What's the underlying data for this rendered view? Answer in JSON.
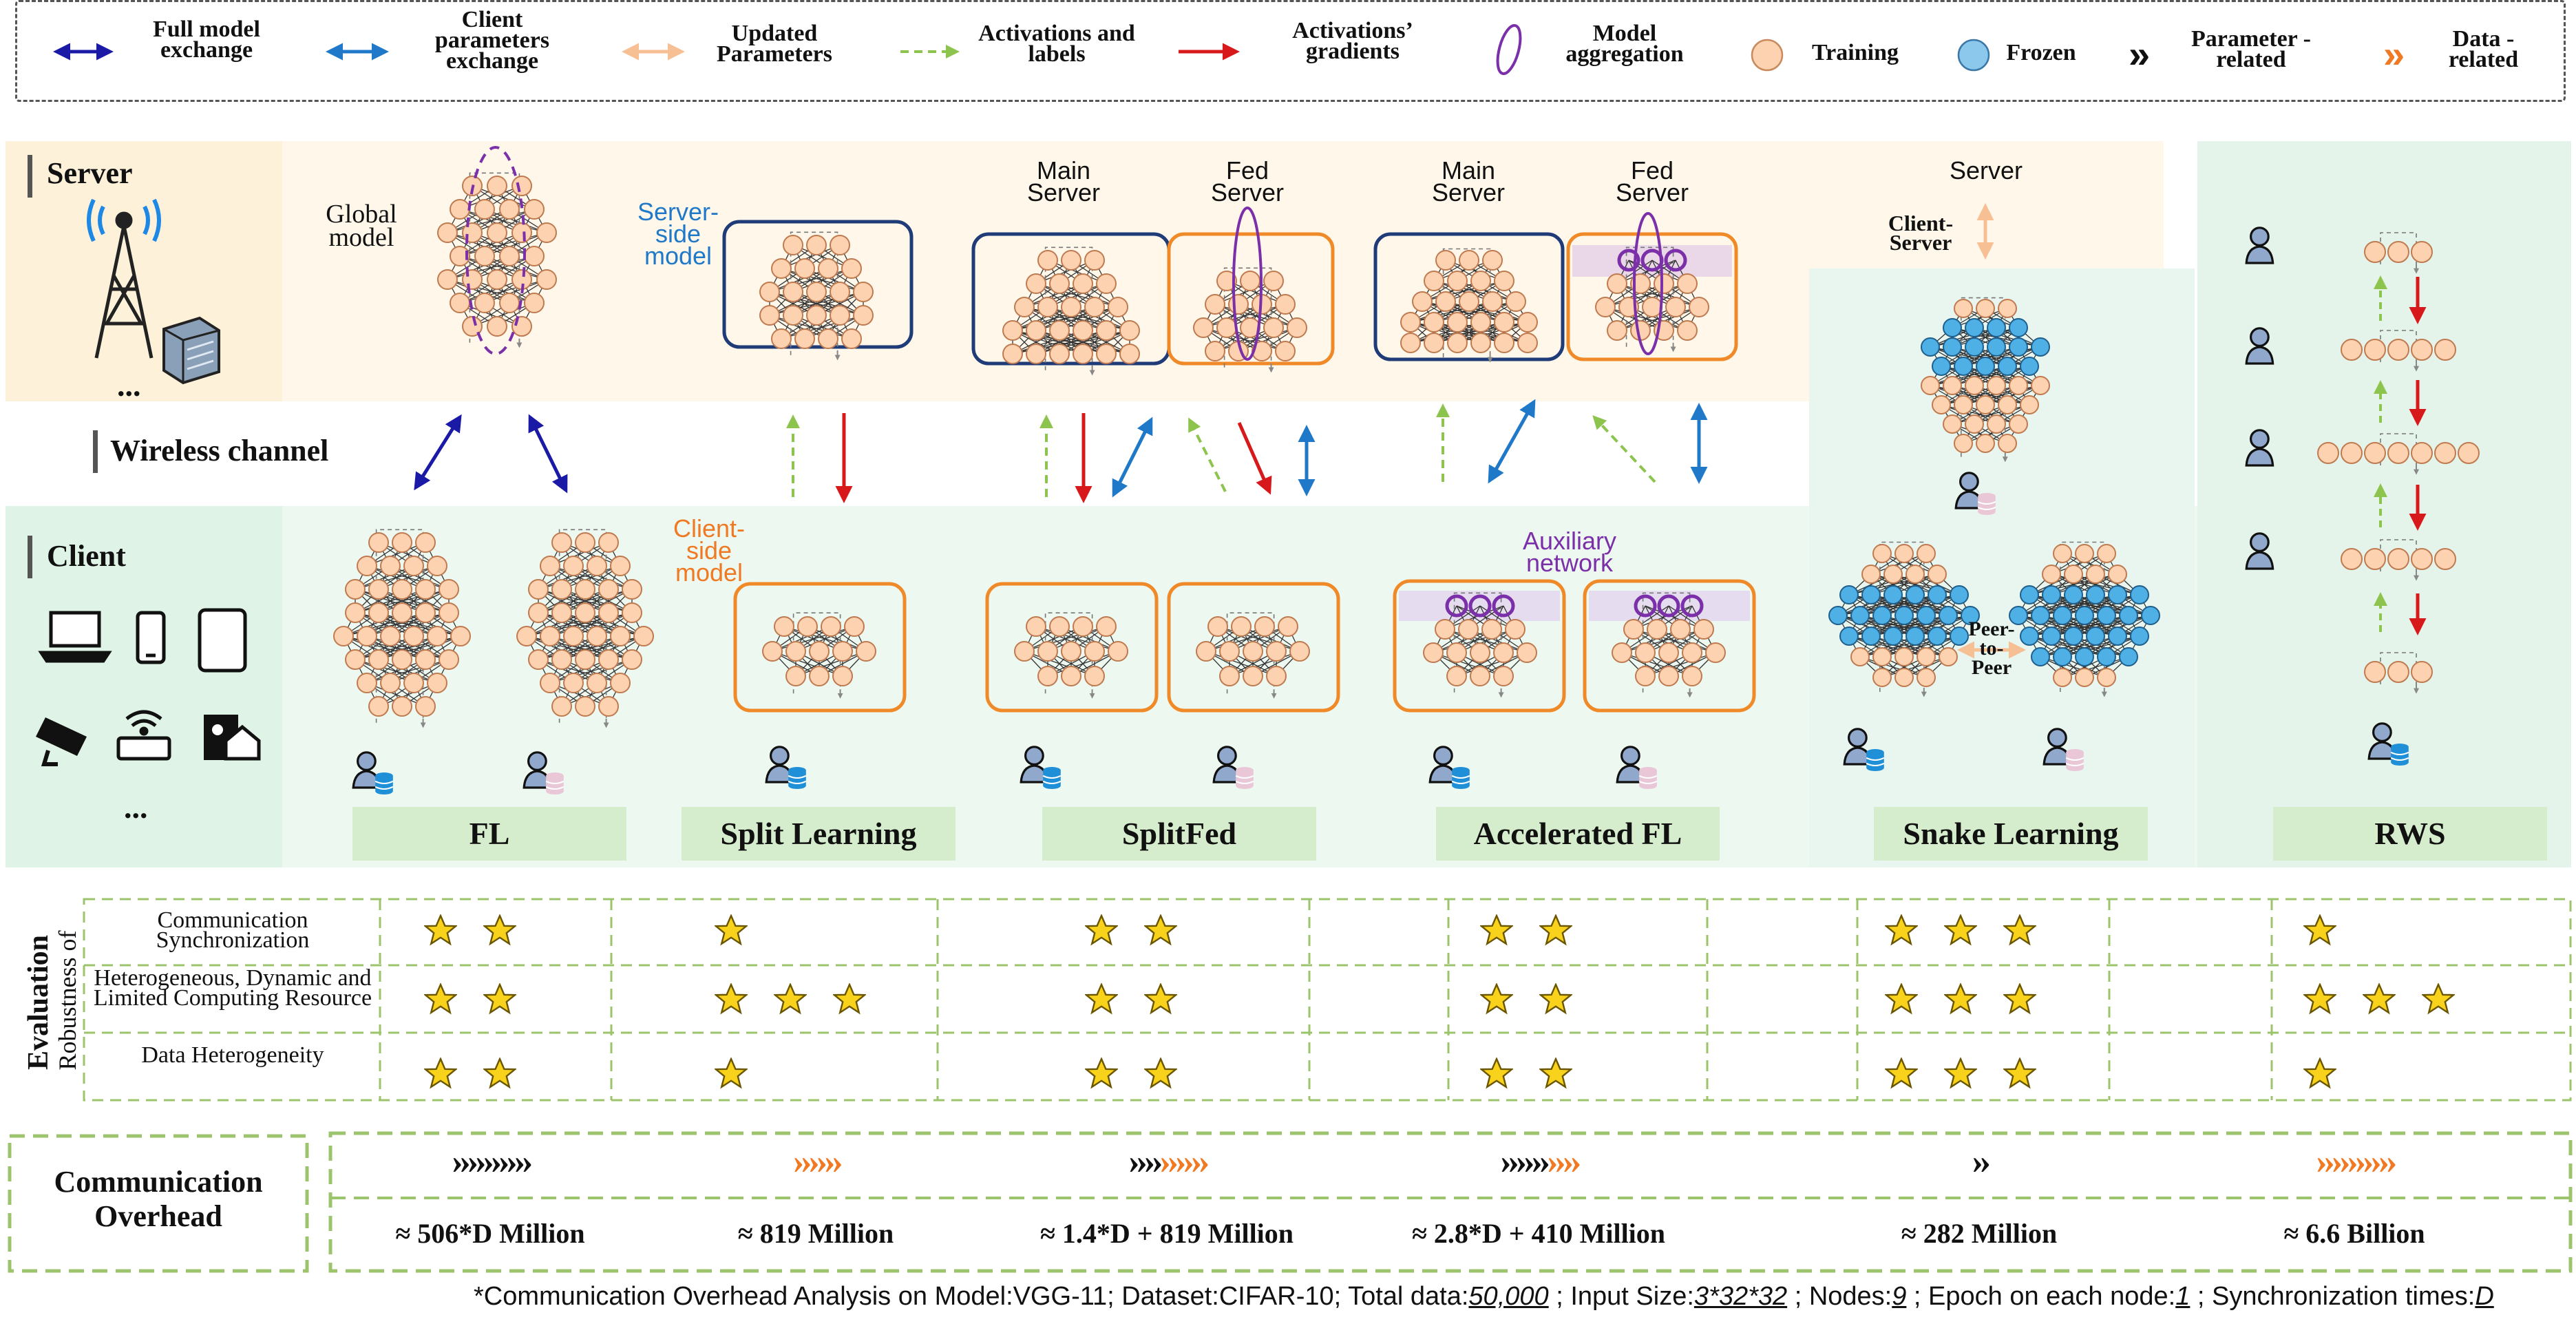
{
  "legend": {
    "full_model": "Full model exchange",
    "client_params": "Client parameters exchange",
    "updated_params": "Updated Parameters",
    "activations_labels": "Activations and labels",
    "activations_gradients": "Activations’ gradients",
    "model_aggregation": "Model aggregation",
    "training": "Training",
    "frozen": "Frozen",
    "parameter_related": "Parameter -related",
    "data_related": "Data -related"
  },
  "regions": {
    "server": "Server",
    "wireless": "Wireless channel",
    "client": "Client",
    "ellipsis": "..."
  },
  "labels": {
    "global_model": "Global model",
    "server_side_model": "Server- side model",
    "client_side_model": "Client- side model",
    "main_server": "Main Server",
    "fed_server": "Fed Server",
    "server": "Server",
    "client_server": "Client- Server",
    "auxiliary_network": "Auxiliary network",
    "peer_to_peer": "Peer- to- Peer"
  },
  "colors": {
    "full_model": "#1a1aa6",
    "client_params": "#1f78c8",
    "updated_params": "#f7bf94",
    "activations": "#8cc44e",
    "gradients": "#d7191c",
    "aggregation": "#7b2fa8",
    "training_node": "#fcd2b0",
    "frozen_node": "#5ab2e0",
    "server_bg": "#fff8ea",
    "client_bg": "#ecf8f0",
    "method_box": "#d5edcc",
    "dashed_green": "#9cc46c"
  },
  "methods": [
    "FL",
    "Split Learning",
    "SplitFed",
    "Accelerated FL",
    "Snake Learning",
    "RWS"
  ],
  "evaluation": {
    "title": "Evaluation",
    "subtitle": "Robustness of",
    "criteria": [
      {
        "label": "Communication Synchronization",
        "stars": [
          2,
          1,
          2,
          2,
          3,
          1
        ]
      },
      {
        "label": "Heterogeneous, Dynamic and Limited Computing Resource",
        "stars": [
          2,
          3,
          2,
          2,
          3,
          3
        ]
      },
      {
        "label": "Data Heterogeneity",
        "stars": [
          2,
          1,
          2,
          2,
          3,
          1
        ]
      }
    ]
  },
  "overhead": {
    "title": "Communication Overhead",
    "items": [
      {
        "value": "≈  506*D Million",
        "param_chevrons": 10,
        "data_chevrons": 0
      },
      {
        "value": "≈  819 Million",
        "param_chevrons": 0,
        "data_chevrons": 6
      },
      {
        "value": "≈  1.4*D + 819  Million",
        "param_chevrons": 4,
        "data_chevrons": 6
      },
      {
        "value": "≈  2.8*D + 410  Million",
        "param_chevrons": 6,
        "data_chevrons": 4
      },
      {
        "value": "≈  282  Million",
        "param_chevrons": 2,
        "data_chevrons": 0
      },
      {
        "value": "≈  6.6  Billion",
        "param_chevrons": 0,
        "data_chevrons": 10
      }
    ]
  },
  "footnote": {
    "prefix": "*Communication Overhead Analysis on Model:VGG-11; Dataset:CIFAR-10; Total data:",
    "total_data": "50,000",
    "input_prefix": " ; Input Size:",
    "input_size": "3*32*32",
    "nodes_prefix": " ; Nodes:",
    "nodes": "9",
    "epoch_prefix": " ; Epoch on each node:",
    "epoch": "1",
    "sync_prefix": " ; Synchronization times:",
    "sync": "D"
  }
}
